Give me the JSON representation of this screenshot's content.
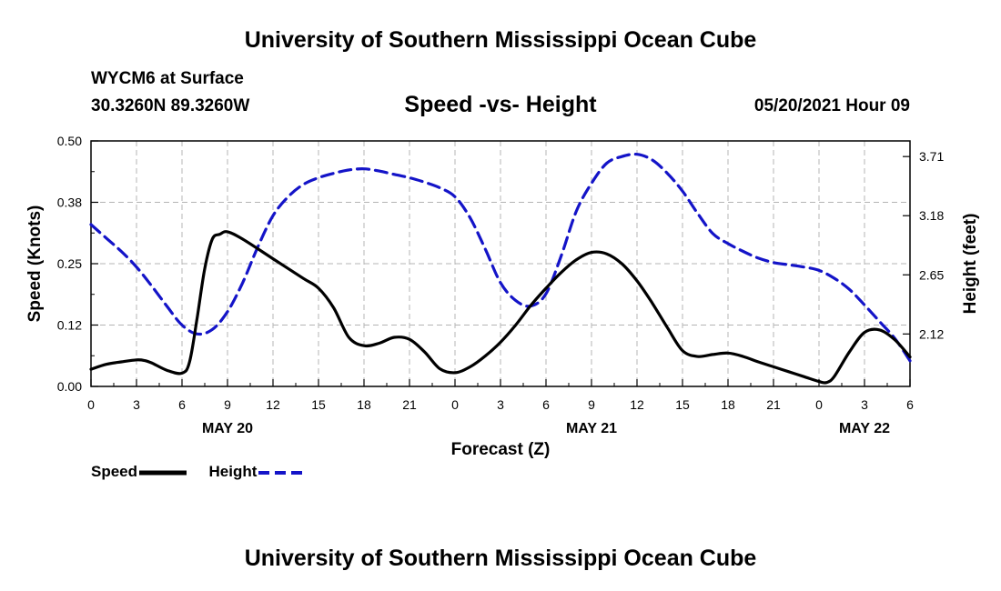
{
  "page": {
    "title_top": "University of Southern Mississippi Ocean Cube",
    "title_bottom": "University of Southern Mississippi Ocean Cube",
    "station": "WYCM6 at Surface",
    "coords": "30.3260N  89.3260W",
    "chart_title": "Speed -vs- Height",
    "datetime": "05/20/2021 Hour 09"
  },
  "colors": {
    "speed": "#000000",
    "height": "#1414c8",
    "grid": "#b4b4b4"
  },
  "chart_data": {
    "type": "line",
    "title": "Speed -vs- Height",
    "xlabel": "Forecast (Z)",
    "ylabel": "Speed (Knots)",
    "ylabel_right": "Height (feet)",
    "x_range": [
      0,
      54
    ],
    "ylim": [
      0,
      0.5
    ],
    "ylim_right": [
      1.65,
      3.85
    ],
    "y_ticks": [
      "0.00",
      "0.12",
      "0.25",
      "0.38",
      "0.50"
    ],
    "y_ticks_right": [
      "2.12",
      "2.65",
      "3.18",
      "3.71"
    ],
    "x_tick_labels": [
      "0",
      "3",
      "6",
      "9",
      "12",
      "15",
      "18",
      "21",
      "0",
      "3",
      "6",
      "9",
      "12",
      "15",
      "18",
      "21",
      "0",
      "3",
      "6"
    ],
    "day_labels": [
      "MAY 20",
      "MAY 21",
      "MAY 22"
    ],
    "legend": [
      "Speed",
      "Height"
    ],
    "series": [
      {
        "name": "Speed",
        "axis": "left",
        "style": "solid",
        "x": [
          0,
          1,
          2,
          3,
          3.5,
          4,
          5,
          6,
          6.5,
          7,
          7.5,
          8,
          8.5,
          9,
          10,
          12,
          14,
          15,
          16,
          17,
          18,
          19,
          20,
          21,
          22,
          23,
          24,
          25,
          26,
          27,
          28,
          29,
          30,
          31,
          32,
          33,
          34,
          35,
          36,
          37,
          38,
          39,
          40,
          41,
          42,
          43,
          44,
          45,
          46,
          47,
          48,
          48.5,
          49,
          50,
          51,
          52,
          53,
          54
        ],
        "values": [
          0.035,
          0.045,
          0.05,
          0.054,
          0.053,
          0.048,
          0.033,
          0.027,
          0.05,
          0.14,
          0.24,
          0.3,
          0.31,
          0.315,
          0.3,
          0.26,
          0.22,
          0.2,
          0.16,
          0.1,
          0.083,
          0.088,
          0.1,
          0.096,
          0.07,
          0.036,
          0.028,
          0.04,
          0.062,
          0.09,
          0.125,
          0.165,
          0.2,
          0.232,
          0.258,
          0.273,
          0.27,
          0.25,
          0.215,
          0.17,
          0.12,
          0.073,
          0.061,
          0.065,
          0.068,
          0.061,
          0.05,
          0.04,
          0.03,
          0.02,
          0.01,
          0.008,
          0.02,
          0.07,
          0.11,
          0.115,
          0.095,
          0.06
        ]
      },
      {
        "name": "Height",
        "axis": "right",
        "style": "dashed",
        "x": [
          0,
          1,
          2,
          3,
          4,
          5,
          6,
          7,
          8,
          9,
          10,
          11,
          12,
          13,
          14,
          15,
          16,
          17,
          18,
          19,
          20,
          21,
          22,
          23,
          24,
          25,
          26,
          27,
          28,
          29,
          30,
          31,
          32,
          33,
          34,
          35,
          36,
          37,
          38,
          39,
          40,
          41,
          42,
          43,
          44,
          45,
          46,
          47,
          48,
          49,
          50,
          51,
          52,
          53,
          54
        ],
        "values": [
          3.1,
          2.98,
          2.86,
          2.72,
          2.55,
          2.37,
          2.2,
          2.12,
          2.16,
          2.32,
          2.58,
          2.9,
          3.18,
          3.35,
          3.46,
          3.52,
          3.56,
          3.59,
          3.6,
          3.58,
          3.55,
          3.52,
          3.48,
          3.43,
          3.35,
          3.16,
          2.88,
          2.58,
          2.42,
          2.37,
          2.48,
          2.82,
          3.22,
          3.47,
          3.65,
          3.71,
          3.73,
          3.68,
          3.56,
          3.4,
          3.2,
          3.02,
          2.93,
          2.86,
          2.8,
          2.76,
          2.74,
          2.72,
          2.69,
          2.62,
          2.52,
          2.38,
          2.23,
          2.08,
          1.88
        ]
      }
    ]
  }
}
